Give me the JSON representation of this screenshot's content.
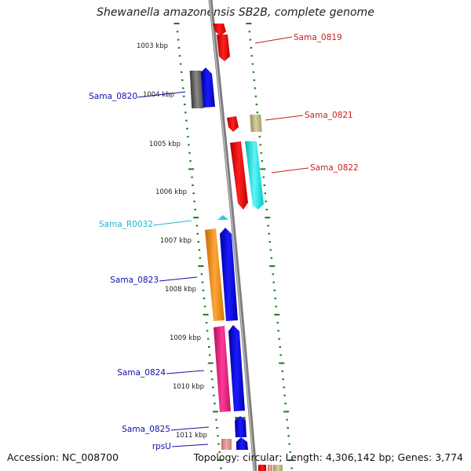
{
  "title": "Shewanella amazonensis SB2B, complete genome",
  "accession": "Accession: NC_008700",
  "summary": "Topology: circular; Length: 4,306,142 bp; Genes: 3,774",
  "colors": {
    "backbone": "#8c8c8c",
    "tick": "#1a7a1a",
    "label_red": "#c81e1e",
    "label_blue": "#1010aa",
    "label_cyan": "#22b5cc"
  },
  "ruler_labels": [
    "1003 kbp",
    "1004 kbp",
    "1005 kbp",
    "1006 kbp",
    "1007 kbp",
    "1008 kbp",
    "1009 kbp",
    "1010 kbp",
    "1011 kbp"
  ],
  "gene_labels": {
    "sama_0819": "Sama_0819",
    "sama_0820": "Sama_0820",
    "sama_0821": "Sama_0821",
    "sama_0822": "Sama_0822",
    "sama_r0032": "Sama_R0032",
    "sama_0823": "Sama_0823",
    "sama_0824": "Sama_0824",
    "sama_0825": "Sama_0825",
    "rpsu": "rpsU"
  }
}
